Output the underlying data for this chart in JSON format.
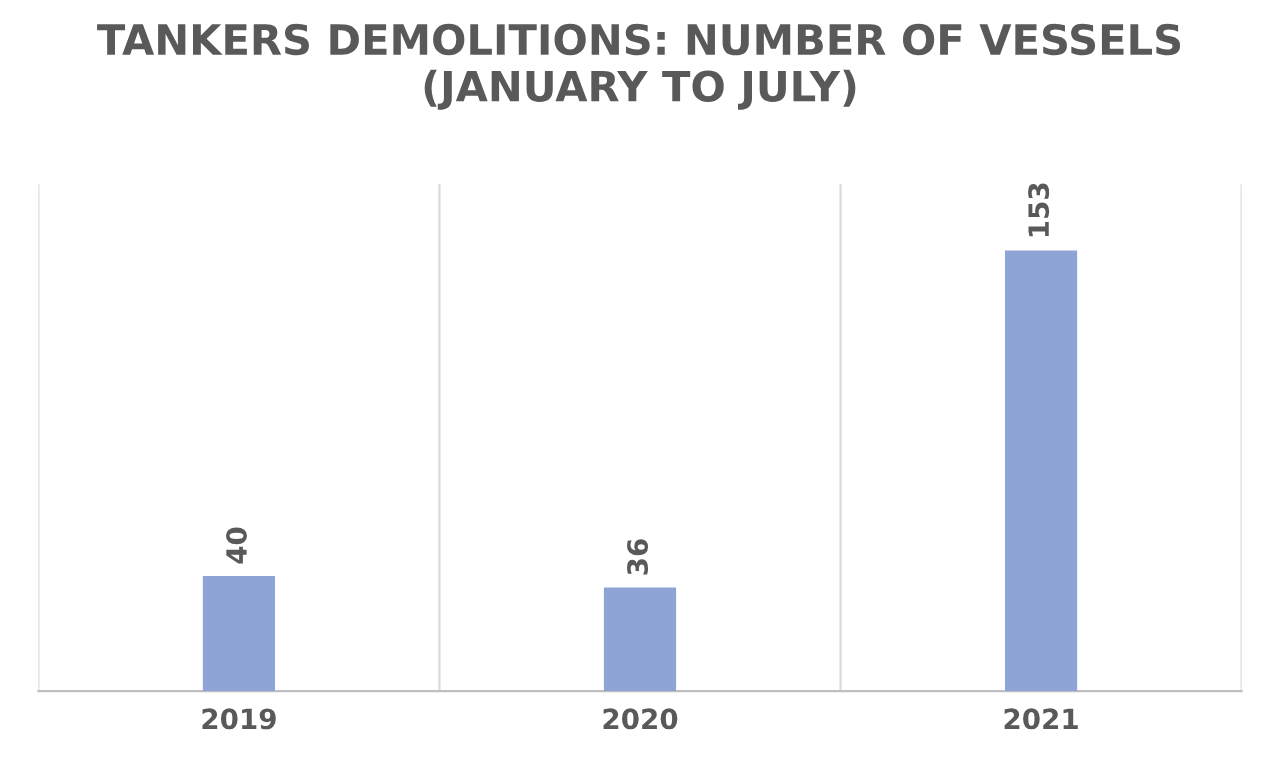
{
  "chart_data": {
    "type": "bar",
    "title": "TANKERS DEMOLITIONS: NUMBER OF VESSELS (JANUARY TO JULY)",
    "categories": [
      "2019",
      "2020",
      "2021"
    ],
    "values": [
      40,
      36,
      153
    ],
    "color": "#8fa4d6",
    "data_labels": true,
    "grid": "x"
  }
}
